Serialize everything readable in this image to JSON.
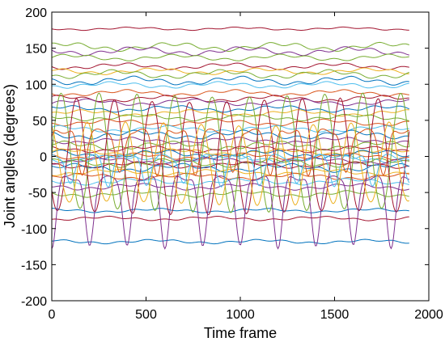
{
  "chart_data": {
    "type": "line",
    "title": "",
    "xlabel": "Time frame",
    "ylabel": "Joint angles (degrees)",
    "xlim": [
      0,
      2000
    ],
    "ylim": [
      -200,
      200
    ],
    "xticks": [
      0,
      500,
      1000,
      1500,
      2000
    ],
    "yticks": [
      -200,
      -150,
      -100,
      -50,
      0,
      50,
      100,
      150,
      200
    ],
    "grid": false,
    "legend": "none",
    "x_range": [
      0,
      1900
    ],
    "series": [
      {
        "color": "#A2142F",
        "baseline": 177,
        "amp": 1.5,
        "kind": "flat"
      },
      {
        "color": "#77AC30",
        "baseline": 152,
        "amp": 4,
        "kind": "flat"
      },
      {
        "color": "#7E2F8E",
        "baseline": 146,
        "amp": 4,
        "kind": "flat"
      },
      {
        "color": "#77AC30",
        "baseline": 137,
        "amp": 3,
        "kind": "flat"
      },
      {
        "color": "#A2142F",
        "baseline": 125,
        "amp": 3,
        "kind": "flat"
      },
      {
        "color": "#EDB120",
        "baseline": 118,
        "amp": 3,
        "kind": "flat"
      },
      {
        "color": "#77AC30",
        "baseline": 114,
        "amp": 4,
        "kind": "flat"
      },
      {
        "color": "#0072BD",
        "baseline": 105,
        "amp": 4,
        "kind": "flat"
      },
      {
        "color": "#4DBEEE",
        "baseline": 99,
        "amp": 3,
        "kind": "flat"
      },
      {
        "color": "#D95319",
        "baseline": 88,
        "amp": 3,
        "kind": "flat"
      },
      {
        "color": "#A2142F",
        "baseline": 80,
        "amp": 3,
        "kind": "flat"
      },
      {
        "color": "#7E2F8E",
        "baseline": 75,
        "amp": 3,
        "kind": "flat"
      },
      {
        "color": "#0072BD",
        "baseline": 66,
        "amp": 3,
        "kind": "flat"
      },
      {
        "color": "#EDB120",
        "baseline": 60,
        "amp": 3,
        "kind": "flat"
      },
      {
        "color": "#77AC30",
        "baseline": 54,
        "amp": 3,
        "kind": "flat"
      },
      {
        "color": "#D95319",
        "baseline": 47,
        "amp": 3,
        "kind": "flat"
      },
      {
        "color": "#4DBEEE",
        "baseline": 38,
        "amp": 3,
        "kind": "flat"
      },
      {
        "color": "#0072BD",
        "baseline": 30,
        "amp": 4,
        "kind": "flat"
      },
      {
        "color": "#7E2F8E",
        "baseline": 22,
        "amp": 3,
        "kind": "flat"
      },
      {
        "color": "#77AC30",
        "baseline": 15,
        "amp": 4,
        "kind": "flat"
      },
      {
        "color": "#A2142F",
        "baseline": 10,
        "amp": 3,
        "kind": "flat"
      },
      {
        "color": "#EDB120",
        "baseline": 6,
        "amp": 3,
        "kind": "flat"
      },
      {
        "color": "#0072BD",
        "baseline": 3,
        "amp": 4,
        "kind": "flat"
      },
      {
        "color": "#D95319",
        "baseline": 0,
        "amp": 3,
        "kind": "flat"
      },
      {
        "color": "#4DBEEE",
        "baseline": -3,
        "amp": 4,
        "kind": "flat"
      },
      {
        "color": "#7E2F8E",
        "baseline": -6,
        "amp": 3,
        "kind": "flat"
      },
      {
        "color": "#77AC30",
        "baseline": -9,
        "amp": 4,
        "kind": "flat"
      },
      {
        "color": "#A2142F",
        "baseline": -12,
        "amp": 3,
        "kind": "flat"
      },
      {
        "color": "#0072BD",
        "baseline": -16,
        "amp": 4,
        "kind": "flat"
      },
      {
        "color": "#EDB120",
        "baseline": -22,
        "amp": 3,
        "kind": "flat"
      },
      {
        "color": "#D95319",
        "baseline": -28,
        "amp": 3,
        "kind": "flat"
      },
      {
        "color": "#4DBEEE",
        "baseline": -35,
        "amp": 3,
        "kind": "flat"
      },
      {
        "color": "#7E2F8E",
        "baseline": -42,
        "amp": 3,
        "kind": "flat"
      },
      {
        "color": "#77AC30",
        "baseline": -52,
        "amp": 3,
        "kind": "flat"
      },
      {
        "color": "#0072BD",
        "baseline": -75,
        "amp": 2,
        "kind": "flat"
      },
      {
        "color": "#A2142F",
        "baseline": -86,
        "amp": 2,
        "kind": "flat"
      },
      {
        "color": "#0072BD",
        "baseline": -118,
        "amp": 2,
        "kind": "flat"
      },
      {
        "color": "#77AC30",
        "baseline": 5,
        "amp": 80,
        "kind": "osc",
        "phase": 0.0
      },
      {
        "color": "#A2142F",
        "baseline": 0,
        "amp": 78,
        "kind": "osc",
        "phase": 0.6
      },
      {
        "color": "#7E2F8E",
        "baseline": -70,
        "amp": 95,
        "kind": "dip",
        "phase": 0.0
      },
      {
        "color": "#EDB120",
        "baseline": -10,
        "amp": 55,
        "kind": "osc",
        "phase": 0.3
      },
      {
        "color": "#4DBEEE",
        "baseline": -40,
        "amp": 40,
        "kind": "dip",
        "phase": 0.5
      },
      {
        "color": "#D95319",
        "baseline": -5,
        "amp": 60,
        "kind": "dip",
        "phase": 0.2
      }
    ]
  }
}
